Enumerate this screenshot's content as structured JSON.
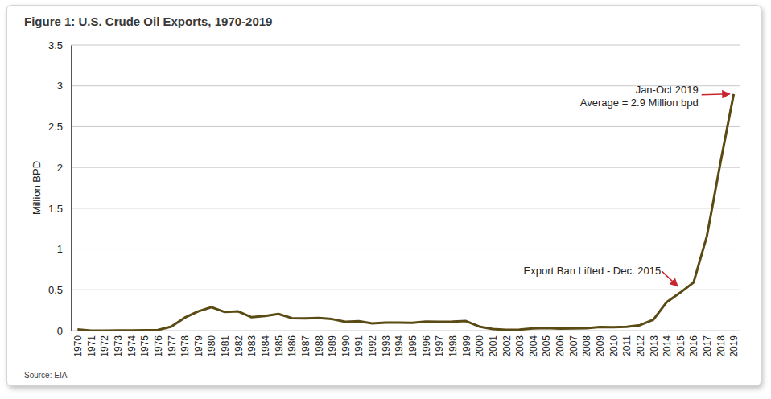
{
  "chart_data": {
    "type": "line",
    "title": "Figure 1: U.S. Crude Oil Exports, 1970-2019",
    "y_label": "Million BPD",
    "source": "Source: EIA",
    "color": "#5a4a14",
    "grid": true,
    "x": [
      1970,
      1971,
      1972,
      1973,
      1974,
      1975,
      1976,
      1977,
      1978,
      1979,
      1980,
      1981,
      1982,
      1983,
      1984,
      1985,
      1986,
      1987,
      1988,
      1989,
      1990,
      1991,
      1992,
      1993,
      1994,
      1995,
      1996,
      1997,
      1998,
      1999,
      2000,
      2001,
      2002,
      2003,
      2004,
      2005,
      2006,
      2007,
      2008,
      2009,
      2010,
      2011,
      2012,
      2013,
      2014,
      2015,
      2016,
      2017,
      2018,
      2019
    ],
    "values": [
      0.014,
      0.001,
      0.0,
      0.002,
      0.003,
      0.006,
      0.008,
      0.05,
      0.158,
      0.235,
      0.287,
      0.228,
      0.236,
      0.164,
      0.181,
      0.204,
      0.154,
      0.151,
      0.155,
      0.142,
      0.109,
      0.116,
      0.089,
      0.098,
      0.099,
      0.095,
      0.11,
      0.108,
      0.11,
      0.118,
      0.05,
      0.02,
      0.009,
      0.012,
      0.027,
      0.032,
      0.025,
      0.027,
      0.029,
      0.044,
      0.042,
      0.047,
      0.067,
      0.134,
      0.351,
      0.465,
      0.59,
      1.16,
      2.05,
      2.9
    ],
    "xlim": [
      1969.5,
      2019.5
    ],
    "xticks": [
      1970,
      1971,
      1972,
      1973,
      1974,
      1975,
      1976,
      1977,
      1978,
      1979,
      1980,
      1981,
      1982,
      1983,
      1984,
      1985,
      1986,
      1987,
      1988,
      1989,
      1990,
      1991,
      1992,
      1993,
      1994,
      1995,
      1996,
      1997,
      1998,
      1999,
      2000,
      2001,
      2002,
      2003,
      2004,
      2005,
      2006,
      2007,
      2008,
      2009,
      2010,
      2011,
      2012,
      2013,
      2014,
      2015,
      2016,
      2017,
      2018,
      2019
    ],
    "ylim": [
      0,
      3.5
    ],
    "yticks": [
      0,
      0.5,
      1,
      1.5,
      2,
      2.5,
      3,
      3.5
    ],
    "annotations": [
      {
        "text": [
          "Jan-Oct 2019",
          "Average = 2.9 Million bpd"
        ],
        "x": 2019
      },
      {
        "text": [
          "Export Ban Lifted - Dec. 2015"
        ],
        "x": 2015
      }
    ]
  }
}
